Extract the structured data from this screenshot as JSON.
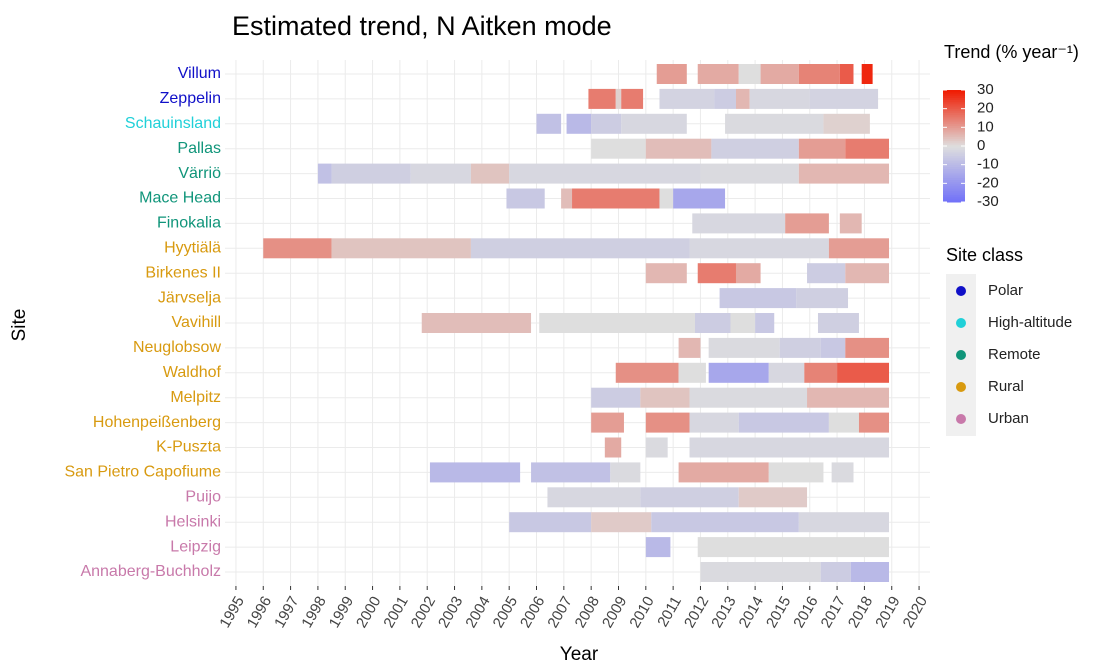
{
  "chart_data": {
    "type": "tile",
    "title": "Estimated trend, N Aitken mode",
    "xlabel": "Year",
    "ylabel": "Site",
    "xlim": [
      1994.6,
      2020.4
    ],
    "xticks": [
      1995,
      1996,
      1997,
      1998,
      1999,
      2000,
      2001,
      2002,
      2003,
      2004,
      2005,
      2006,
      2007,
      2008,
      2009,
      2010,
      2011,
      2012,
      2013,
      2014,
      2015,
      2016,
      2017,
      2018,
      2019,
      2020
    ],
    "grid": true,
    "colorbar": {
      "title": "Trend (% year⁻¹)",
      "lim": [
        -30,
        30
      ],
      "ticks": [
        30,
        20,
        10,
        0,
        -10,
        -20,
        -30
      ],
      "low": "#7070f8",
      "mid": "#dedede",
      "high": "#f01a00"
    },
    "class_legend": {
      "title": "Site class",
      "classes": [
        {
          "name": "Polar",
          "color": "#1010c8"
        },
        {
          "name": "High-altitude",
          "color": "#20d0d8"
        },
        {
          "name": "Remote",
          "color": "#10957a"
        },
        {
          "name": "Rural",
          "color": "#d89a10"
        },
        {
          "name": "Urban",
          "color": "#c879aa"
        }
      ]
    },
    "sites": [
      {
        "name": "Villum",
        "class": "Polar",
        "start": [
          2010.4,
          2011.9,
          2013.4,
          2014.2,
          2015.6,
          2017.1,
          2017.9
        ],
        "end": [
          2011.5,
          2013.4,
          2014.2,
          2015.6,
          2017.1,
          2017.6,
          2018.3
        ],
        "values": [
          10,
          8,
          0,
          8,
          14,
          20,
          28
        ]
      },
      {
        "name": "Zeppelin",
        "class": "Polar",
        "start": [
          2007.9,
          2008.9,
          2009.1,
          2010.5,
          2012.5,
          2013.3,
          2013.8,
          2016
        ],
        "end": [
          2008.9,
          2009.1,
          2009.9,
          2012.5,
          2013.3,
          2013.8,
          2016,
          2018.5
        ],
        "values": [
          15,
          2,
          15,
          -3,
          -5,
          6,
          -2,
          -3
        ]
      },
      {
        "name": "Schauinsland",
        "class": "High-altitude",
        "start": [
          2006,
          2007.1,
          2008,
          2009.1,
          2012.9,
          2016.5
        ],
        "end": [
          2006.9,
          2008,
          2009.1,
          2011.5,
          2016.5,
          2018.2
        ],
        "values": [
          -8,
          -10,
          -5,
          -2,
          -1,
          2
        ]
      },
      {
        "name": "Pallas",
        "class": "Remote",
        "start": [
          2008,
          2010,
          2012.4,
          2015.6,
          2017.3
        ],
        "end": [
          2010,
          2012.4,
          2015.6,
          2017.3,
          2018.9
        ],
        "values": [
          0,
          5,
          -4,
          10,
          15
        ]
      },
      {
        "name": "Värriö",
        "class": "Remote",
        "start": [
          1998,
          1998.5,
          2001.4,
          2003.6,
          2005,
          2012,
          2015.6
        ],
        "end": [
          1998.5,
          2001.4,
          2003.6,
          2005,
          2012,
          2015.6,
          2018.9
        ],
        "values": [
          -8,
          -4,
          -2,
          4,
          -2,
          -1,
          6
        ]
      },
      {
        "name": "Mace Head",
        "class": "Remote",
        "start": [
          2004.9,
          2006.9,
          2007.3,
          2010.5,
          2011
        ],
        "end": [
          2006.3,
          2007.3,
          2010.5,
          2011,
          2012.9
        ],
        "values": [
          -6,
          5,
          15,
          0,
          -15
        ]
      },
      {
        "name": "Finokalia",
        "class": "Remote",
        "start": [
          2011.7,
          2015.1,
          2017.1
        ],
        "end": [
          2015.1,
          2016.7,
          2017.9
        ],
        "values": [
          -2,
          10,
          6
        ]
      },
      {
        "name": "Hyytiälä",
        "class": "Rural",
        "start": [
          1996,
          1998.5,
          2003.6,
          2011.6,
          2016.7
        ],
        "end": [
          1998.5,
          2003.6,
          2011.6,
          2016.7,
          2018.9
        ],
        "values": [
          12,
          4,
          -4,
          -2,
          10
        ]
      },
      {
        "name": "Birkenes II",
        "class": "Rural",
        "start": [
          2010,
          2011.9,
          2013.3,
          2015.9,
          2017.3
        ],
        "end": [
          2011.5,
          2013.3,
          2014.2,
          2017.3,
          2018.9
        ],
        "values": [
          6,
          15,
          8,
          -5,
          6
        ]
      },
      {
        "name": "Järvselja",
        "class": "Rural",
        "start": [
          2012.7,
          2015.5
        ],
        "end": [
          2015.5,
          2017.4
        ],
        "values": [
          -6,
          -4
        ]
      },
      {
        "name": "Vavihill",
        "class": "Rural",
        "start": [
          2001.8,
          2006.1,
          2011.8,
          2013.1,
          2014,
          2016.3
        ],
        "end": [
          2005.8,
          2011.8,
          2013.1,
          2014,
          2014.7,
          2017.8
        ],
        "values": [
          5,
          0,
          -5,
          0,
          -6,
          -4
        ]
      },
      {
        "name": "Neuglobsow",
        "class": "Rural",
        "start": [
          2011.2,
          2012.3,
          2014.9,
          2016.4,
          2017.3
        ],
        "end": [
          2012,
          2014.9,
          2016.4,
          2017.3,
          2018.9
        ],
        "values": [
          6,
          -1,
          -4,
          -6,
          12
        ]
      },
      {
        "name": "Waldhof",
        "class": "Rural",
        "start": [
          2008.9,
          2011.2,
          2012.3,
          2014.5,
          2015.8,
          2017
        ],
        "end": [
          2011.2,
          2012.2,
          2014.5,
          2015.8,
          2017,
          2018.9
        ],
        "values": [
          12,
          0,
          -15,
          -2,
          14,
          20
        ]
      },
      {
        "name": "Melpitz",
        "class": "Rural",
        "start": [
          2008,
          2009.8,
          2011.6,
          2015.9
        ],
        "end": [
          2009.8,
          2011.6,
          2015.9,
          2018.9
        ],
        "values": [
          -5,
          4,
          -1,
          6
        ]
      },
      {
        "name": "Hohenpeißenberg",
        "class": "Rural",
        "start": [
          2008,
          2010,
          2011.6,
          2013.4,
          2016.7,
          2017.8
        ],
        "end": [
          2009.2,
          2011.6,
          2013.4,
          2016.7,
          2017.8,
          2018.9
        ],
        "values": [
          10,
          12,
          -2,
          -6,
          0,
          12
        ]
      },
      {
        "name": "K-Puszta",
        "class": "Rural",
        "start": [
          2008.5,
          2010,
          2011.6
        ],
        "end": [
          2009.1,
          2010.8,
          2018.9
        ],
        "values": [
          8,
          -1,
          -2
        ]
      },
      {
        "name": "San Pietro Capofiume",
        "class": "Rural",
        "start": [
          2002.1,
          2005.8,
          2008.7,
          2011.2,
          2014.5,
          2016.8
        ],
        "end": [
          2005.4,
          2008.7,
          2009.8,
          2014.5,
          2016.5,
          2017.6
        ],
        "values": [
          -10,
          -8,
          -1,
          8,
          0,
          -1
        ]
      },
      {
        "name": "Puijo",
        "class": "Urban",
        "start": [
          2006.4,
          2009.8,
          2013.4
        ],
        "end": [
          2009.8,
          2013.4,
          2015.9
        ],
        "values": [
          -2,
          -4,
          3
        ]
      },
      {
        "name": "Helsinki",
        "class": "Urban",
        "start": [
          2005,
          2008,
          2010.2,
          2015.6
        ],
        "end": [
          2008,
          2010.2,
          2015.6,
          2018.9
        ],
        "values": [
          -6,
          3,
          -6,
          -2
        ]
      },
      {
        "name": "Leipzig",
        "class": "Urban",
        "start": [
          2010,
          2011.9
        ],
        "end": [
          2010.9,
          2018.9
        ],
        "values": [
          -10,
          0
        ]
      },
      {
        "name": "Annaberg-Buchholz",
        "class": "Urban",
        "start": [
          2012,
          2016.4,
          2017.5
        ],
        "end": [
          2016.4,
          2017.5,
          2018.9
        ],
        "values": [
          -1,
          -5,
          -10
        ]
      }
    ]
  }
}
